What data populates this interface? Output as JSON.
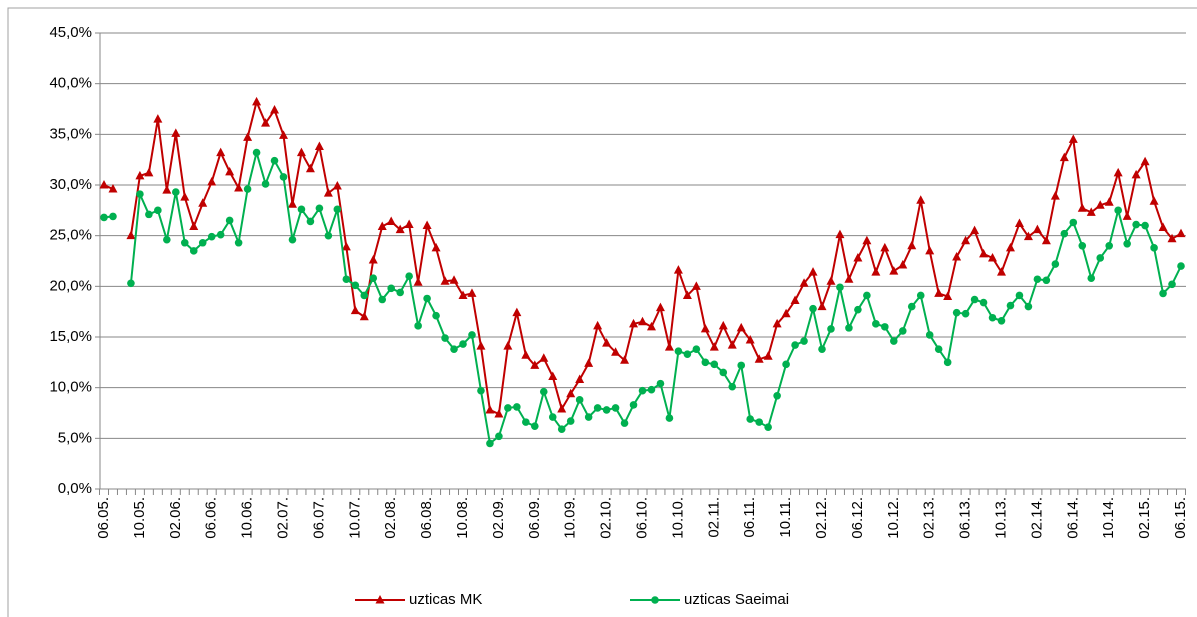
{
  "chart_data": {
    "type": "line",
    "categories": [
      "06.05.",
      null,
      null,
      null,
      "10.05.",
      null,
      null,
      null,
      "02.06.",
      null,
      null,
      null,
      "06.06.",
      null,
      null,
      null,
      "10.06.",
      null,
      null,
      null,
      "02.07.",
      null,
      null,
      null,
      "06.07.",
      null,
      null,
      null,
      "10.07.",
      null,
      null,
      null,
      "02.08.",
      null,
      null,
      null,
      "06.08.",
      null,
      null,
      null,
      "10.08.",
      null,
      null,
      null,
      "02.09.",
      null,
      null,
      null,
      "06.09.",
      null,
      null,
      null,
      "10.09.",
      null,
      null,
      null,
      "02.10.",
      null,
      null,
      null,
      "06.10.",
      null,
      null,
      null,
      "10.10.",
      null,
      null,
      null,
      "02.11.",
      null,
      null,
      null,
      "06.11.",
      null,
      null,
      null,
      "10.11.",
      null,
      null,
      null,
      "02.12.",
      null,
      null,
      null,
      "06.12.",
      null,
      null,
      null,
      "10.12.",
      null,
      null,
      null,
      "02.13.",
      null,
      null,
      null,
      "06.13.",
      null,
      null,
      null,
      "10.13.",
      null,
      null,
      null,
      "02.14.",
      null,
      null,
      null,
      "06.14.",
      null,
      null,
      null,
      "10.14.",
      null,
      null,
      null,
      "02.15.",
      null,
      null,
      null,
      "06.15."
    ],
    "series": [
      {
        "name": "uzticas MK",
        "color": "#c00000",
        "marker": "triangle",
        "values": [
          30.0,
          29.6,
          null,
          25.0,
          30.9,
          31.2,
          36.5,
          29.5,
          35.1,
          28.8,
          25.9,
          28.2,
          30.3,
          33.2,
          31.3,
          29.7,
          34.7,
          38.2,
          36.1,
          37.4,
          34.9,
          28.1,
          33.2,
          31.6,
          33.8,
          29.2,
          29.9,
          23.9,
          17.6,
          17.0,
          22.6,
          25.9,
          26.4,
          25.6,
          26.1,
          20.4,
          26.0,
          23.8,
          20.5,
          20.6,
          19.1,
          19.3,
          14.1,
          7.8,
          7.4,
          14.1,
          17.4,
          13.2,
          12.2,
          12.9,
          11.1,
          7.9,
          9.4,
          10.8,
          12.4,
          16.1,
          14.4,
          13.5,
          12.7,
          16.3,
          16.5,
          16.0,
          17.9,
          14.0,
          21.6,
          19.1,
          20.0,
          15.8,
          14.0,
          16.1,
          14.2,
          15.9,
          14.7,
          12.8,
          13.1,
          16.3,
          17.3,
          18.6,
          20.3,
          21.4,
          18.0,
          20.5,
          25.1,
          20.7,
          22.8,
          24.5,
          21.4,
          23.8,
          21.5,
          22.1,
          24.0,
          28.5,
          23.5,
          19.3,
          19.0,
          22.9,
          24.5,
          25.5,
          23.2,
          22.8,
          21.4,
          23.8,
          26.2,
          24.9,
          25.6,
          24.5,
          28.9,
          32.7,
          34.5,
          27.7,
          27.3,
          28.0,
          28.3,
          31.2,
          26.9,
          31.0,
          32.3,
          28.4,
          25.8,
          24.7,
          25.2
        ]
      },
      {
        "name": "uzticas Saeimai",
        "color": "#00b050",
        "marker": "circle",
        "values": [
          26.8,
          26.9,
          null,
          20.3,
          29.1,
          27.1,
          27.5,
          24.6,
          29.3,
          24.3,
          23.5,
          24.3,
          24.9,
          25.1,
          26.5,
          24.3,
          29.6,
          33.2,
          30.1,
          32.4,
          30.8,
          24.6,
          27.6,
          26.4,
          27.7,
          25.0,
          27.6,
          20.7,
          20.1,
          19.1,
          20.8,
          18.7,
          19.8,
          19.4,
          21.0,
          16.1,
          18.8,
          17.1,
          14.9,
          13.8,
          14.3,
          15.2,
          9.7,
          4.5,
          5.2,
          8.0,
          8.1,
          6.6,
          6.2,
          9.6,
          7.1,
          5.9,
          6.7,
          8.8,
          7.1,
          8.0,
          7.8,
          8.0,
          6.5,
          8.3,
          9.7,
          9.8,
          10.4,
          7.0,
          13.6,
          13.3,
          13.8,
          12.5,
          12.3,
          11.5,
          10.1,
          12.2,
          6.9,
          6.6,
          6.1,
          9.2,
          12.3,
          14.2,
          14.6,
          17.8,
          13.8,
          15.8,
          19.9,
          15.9,
          17.7,
          19.1,
          16.3,
          16.0,
          14.6,
          15.6,
          18.0,
          19.1,
          15.2,
          13.8,
          12.5,
          17.4,
          17.3,
          18.7,
          18.4,
          16.9,
          16.6,
          18.1,
          19.1,
          18.0,
          20.7,
          20.6,
          22.2,
          25.2,
          26.3,
          24.0,
          20.8,
          22.8,
          24.0,
          27.5,
          24.2,
          26.1,
          26.0,
          23.8,
          19.3,
          20.2,
          22.0
        ]
      }
    ],
    "ylim": [
      0,
      45
    ],
    "yticks": [
      {
        "value": 0,
        "label": "0,0%"
      },
      {
        "value": 5,
        "label": "5,0%"
      },
      {
        "value": 10,
        "label": "10,0%"
      },
      {
        "value": 15,
        "label": "15,0%"
      },
      {
        "value": 20,
        "label": "20,0%"
      },
      {
        "value": 25,
        "label": "25,0%"
      },
      {
        "value": 30,
        "label": "30,0%"
      },
      {
        "value": 35,
        "label": "35,0%"
      },
      {
        "value": 40,
        "label": "40,0%"
      },
      {
        "value": 45,
        "label": "45,0%"
      }
    ],
    "grid": true,
    "legend": "bottom"
  }
}
